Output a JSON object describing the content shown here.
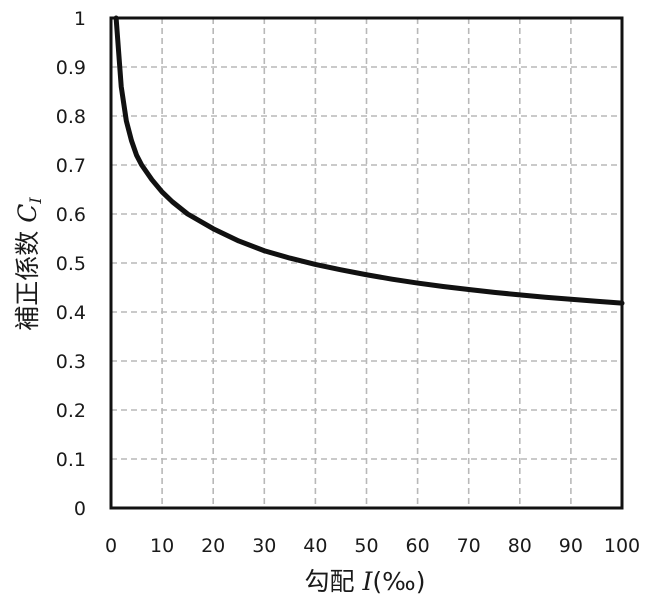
{
  "chart_data": {
    "type": "line",
    "xlim": [
      0,
      100
    ],
    "ylim": [
      0,
      1
    ],
    "x_ticks": [
      0,
      10,
      20,
      30,
      40,
      50,
      60,
      70,
      80,
      90,
      100
    ],
    "y_ticks": [
      0,
      0.1,
      0.2,
      0.3,
      0.4,
      0.5,
      0.6,
      0.7,
      0.8,
      0.9,
      1
    ],
    "x_tick_labels": [
      "0",
      "10",
      "20",
      "30",
      "40",
      "50",
      "60",
      "70",
      "80",
      "90",
      "100"
    ],
    "y_tick_labels": [
      "0",
      "0.1",
      "0.2",
      "0.3",
      "0.4",
      "0.5",
      "0.6",
      "0.7",
      "0.8",
      "0.9",
      "1"
    ],
    "xlabel": {
      "text": "勾配 ",
      "var": "I",
      "unit": "(‰)"
    },
    "ylabel": {
      "text": "補正係数 ",
      "var": "C",
      "sub": "I"
    },
    "grid": true,
    "series": [
      {
        "x": [
          1,
          2,
          3,
          4,
          5,
          6,
          8,
          10,
          12,
          15,
          20,
          25,
          30,
          35,
          40,
          45,
          50,
          55,
          60,
          65,
          70,
          75,
          80,
          85,
          90,
          95,
          100
        ],
        "y": [
          1.0,
          0.86,
          0.79,
          0.75,
          0.72,
          0.7,
          0.67,
          0.645,
          0.625,
          0.6,
          0.57,
          0.545,
          0.525,
          0.51,
          0.497,
          0.486,
          0.476,
          0.467,
          0.459,
          0.452,
          0.446,
          0.44,
          0.435,
          0.43,
          0.426,
          0.422,
          0.418
        ]
      }
    ],
    "colors": {
      "line": "#111111",
      "grid": "#b8b8b8",
      "frame": "#111111"
    }
  }
}
